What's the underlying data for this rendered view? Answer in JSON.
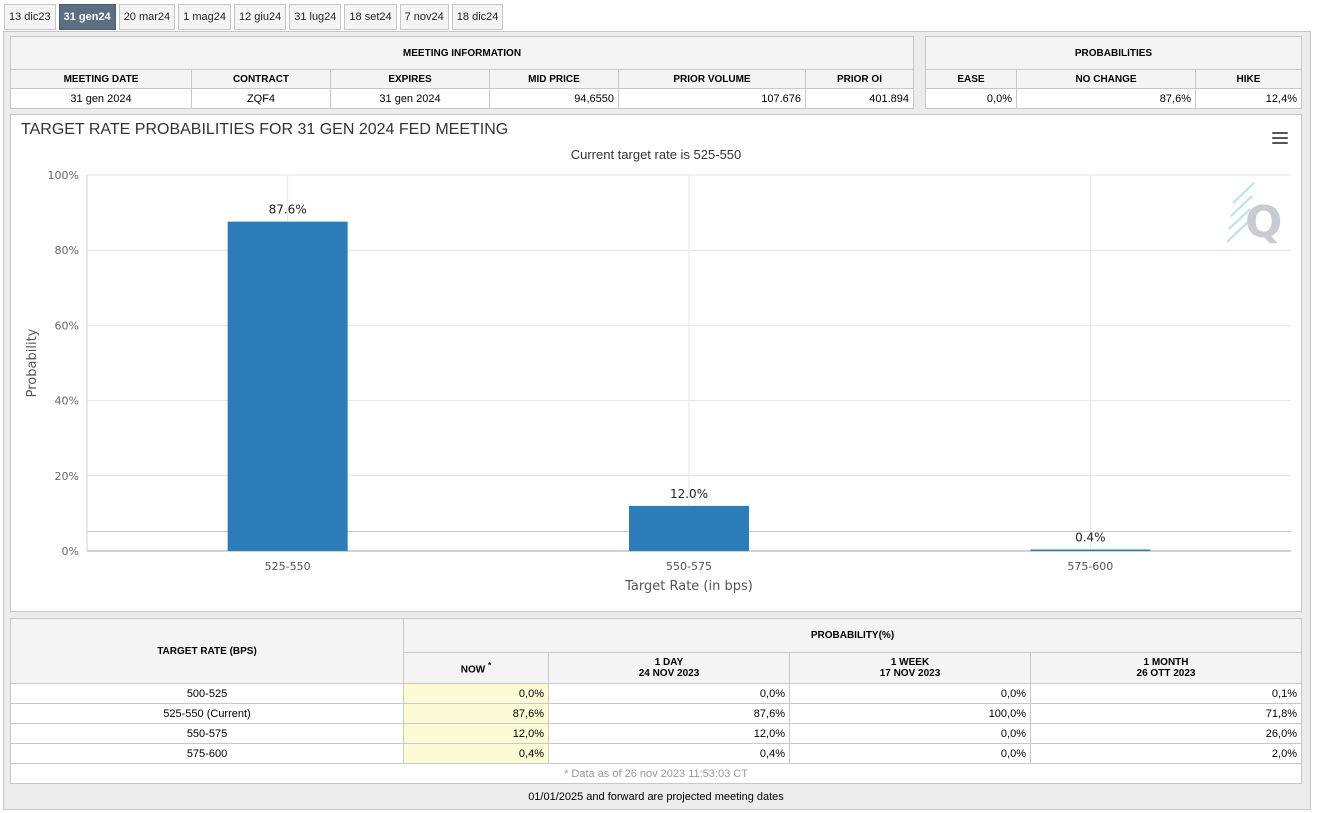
{
  "tabs": [
    {
      "label": "13 dic23",
      "active": false
    },
    {
      "label": "31 gen24",
      "active": true
    },
    {
      "label": "20 mar24",
      "active": false
    },
    {
      "label": "1 mag24",
      "active": false
    },
    {
      "label": "12 giu24",
      "active": false
    },
    {
      "label": "31 lug24",
      "active": false
    },
    {
      "label": "18 set24",
      "active": false
    },
    {
      "label": "7 nov24",
      "active": false
    },
    {
      "label": "18 dic24",
      "active": false
    }
  ],
  "meeting_info": {
    "heading": "MEETING INFORMATION",
    "columns": [
      "MEETING DATE",
      "CONTRACT",
      "EXPIRES",
      "MID PRICE",
      "PRIOR VOLUME",
      "PRIOR OI"
    ],
    "row": [
      "31 gen 2024",
      "ZQF4",
      "31 gen 2024",
      "94,6550",
      "107.676",
      "401.894"
    ]
  },
  "probabilities": {
    "heading": "PROBABILITIES",
    "columns": [
      "EASE",
      "NO CHANGE",
      "HIKE"
    ],
    "row": [
      "0,0%",
      "87,6%",
      "12,4%"
    ]
  },
  "chart": {
    "title": "TARGET RATE PROBABILITIES FOR 31 GEN 2024 FED MEETING",
    "subtitle": "Current target rate is 525-550",
    "logo_text": "Q"
  },
  "chart_data": {
    "type": "bar",
    "title": "TARGET RATE PROBABILITIES FOR 31 GEN 2024 FED MEETING",
    "subtitle": "Current target rate is 525-550",
    "categories": [
      "525-550",
      "550-575",
      "575-600"
    ],
    "values": [
      87.6,
      12.0,
      0.4
    ],
    "data_labels": [
      "87.6%",
      "12.0%",
      "0.4%"
    ],
    "xlabel": "Target Rate (in bps)",
    "ylabel": "Probability",
    "ylim": [
      0,
      100
    ],
    "yticks": [
      "0%",
      "20%",
      "40%",
      "60%",
      "80%",
      "100%"
    ],
    "grid": true,
    "bar_color": "#2a7db8"
  },
  "prob_table": {
    "header_target": "TARGET RATE (BPS)",
    "header_probability": "PROBABILITY(%)",
    "columns": [
      {
        "line1": "NOW",
        "line2": "",
        "mark": "*"
      },
      {
        "line1": "1 DAY",
        "line2": "24 NOV 2023",
        "mark": ""
      },
      {
        "line1": "1 WEEK",
        "line2": "17 NOV 2023",
        "mark": ""
      },
      {
        "line1": "1 MONTH",
        "line2": "26 OTT 2023",
        "mark": ""
      }
    ],
    "rows": [
      {
        "rate": "500-525",
        "values": [
          "0,0%",
          "0,0%",
          "0,0%",
          "0,1%"
        ]
      },
      {
        "rate": "525-550 (Current)",
        "values": [
          "87,6%",
          "87,6%",
          "100,0%",
          "71,8%"
        ]
      },
      {
        "rate": "550-575",
        "values": [
          "12,0%",
          "12,0%",
          "0,0%",
          "26,0%"
        ]
      },
      {
        "rate": "575-600",
        "values": [
          "0,4%",
          "0,4%",
          "0,0%",
          "2,0%"
        ]
      }
    ],
    "footnote": "* Data as of 26 nov 2023 11:53:03 CT"
  },
  "bottom_note": "01/01/2025 and forward are projected meeting dates"
}
